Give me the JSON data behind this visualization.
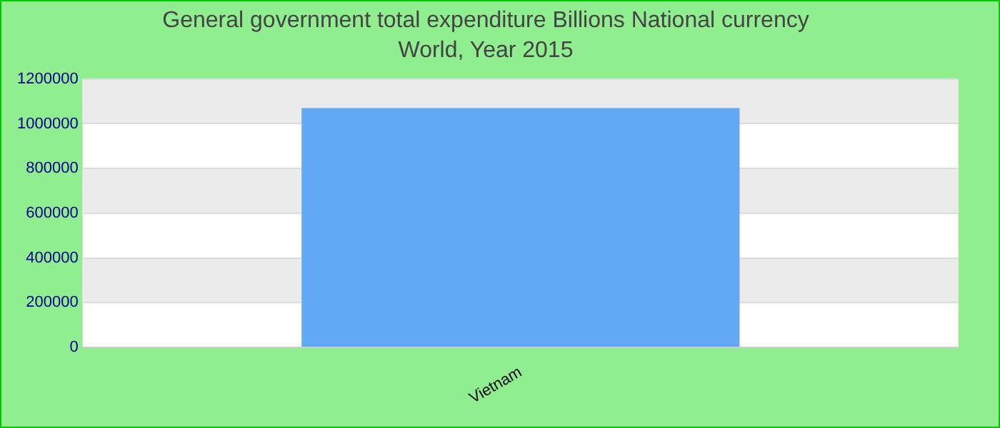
{
  "chart_data": {
    "type": "bar",
    "title": "General government total expenditure Billions National currency",
    "subtitle": "World, Year 2015",
    "categories": [
      "Vietnam"
    ],
    "values": [
      1070000
    ],
    "color": "#61a8f5",
    "ylim": [
      0,
      1200000
    ],
    "yticks": [
      0,
      200000,
      400000,
      600000,
      800000,
      1000000,
      1200000
    ],
    "grid": "y"
  }
}
